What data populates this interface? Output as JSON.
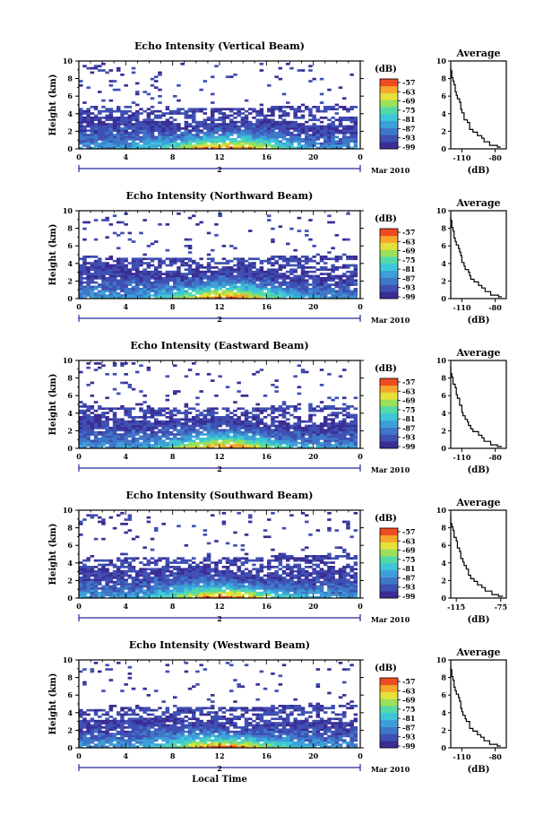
{
  "chart_data": [
    {
      "type": "heatmap",
      "title": "Echo Intensity (Vertical Beam)",
      "ylabel": "Height (km)",
      "xlim": [
        0,
        24
      ],
      "ylim": [
        0,
        10
      ],
      "x_ticks": [
        "0",
        "4",
        "8",
        "12",
        "16",
        "20",
        "0"
      ],
      "y_ticks": [
        "0",
        "2",
        "4",
        "6",
        "8",
        "10"
      ],
      "date_axis": {
        "marker": "2",
        "month_label": "Mar 2010"
      },
      "colorbar": {
        "unit": "(dB)",
        "levels": [
          "-57",
          "-63",
          "-69",
          "-75",
          "-81",
          "-87",
          "-93",
          "-99"
        ]
      },
      "average_profile": {
        "title": "Average",
        "xlabel": "(dB)",
        "x_ticks": [
          "-110",
          "-80"
        ],
        "xlim": [
          -120,
          -70
        ],
        "y_ticks": [
          "0",
          "2",
          "4",
          "6",
          "8",
          "10"
        ],
        "x": [
          -75,
          -78,
          -85,
          -90,
          -92,
          -96,
          -100,
          -103,
          -103,
          -105,
          -108,
          -108,
          -110,
          -111,
          -111,
          -112,
          -114,
          -115,
          -116,
          -116,
          -117,
          -118,
          -119,
          -119,
          -120
        ],
        "y": [
          0.2,
          0.4,
          0.8,
          1.2,
          1.5,
          1.9,
          2.2,
          2.6,
          3.0,
          3.3,
          3.7,
          4.1,
          4.5,
          4.9,
          5.3,
          5.7,
          6.1,
          6.5,
          6.9,
          7.3,
          7.7,
          8.1,
          8.5,
          8.9,
          9.3
        ]
      }
    },
    {
      "type": "heatmap",
      "title": "Echo Intensity (Northward Beam)",
      "ylabel": "Height (km)",
      "xlim": [
        0,
        24
      ],
      "ylim": [
        0,
        10
      ],
      "x_ticks": [
        "0",
        "4",
        "8",
        "12",
        "16",
        "20",
        "0"
      ],
      "y_ticks": [
        "0",
        "2",
        "4",
        "6",
        "8",
        "10"
      ],
      "date_axis": {
        "marker": "2",
        "month_label": "Mar 2010"
      },
      "colorbar": {
        "unit": "(dB)",
        "levels": [
          "-57",
          "-63",
          "-69",
          "-75",
          "-81",
          "-87",
          "-93",
          "-99"
        ]
      },
      "average_profile": {
        "title": "Average",
        "xlabel": "(dB)",
        "x_ticks": [
          "-110",
          "-80"
        ],
        "xlim": [
          -120,
          -70
        ],
        "y_ticks": [
          "0",
          "2",
          "4",
          "6",
          "8",
          "10"
        ],
        "x": [
          -74,
          -77,
          -84,
          -89,
          -92,
          -95,
          -99,
          -102,
          -103,
          -104,
          -107,
          -108,
          -110,
          -110,
          -111,
          -112,
          -113,
          -115,
          -116,
          -117,
          -117,
          -118,
          -119,
          -119,
          -120
        ],
        "y": [
          0.2,
          0.4,
          0.8,
          1.2,
          1.5,
          1.9,
          2.2,
          2.6,
          3.0,
          3.3,
          3.7,
          4.1,
          4.5,
          4.9,
          5.3,
          5.7,
          6.1,
          6.5,
          6.9,
          7.3,
          7.7,
          8.1,
          8.5,
          8.9,
          9.3
        ]
      }
    },
    {
      "type": "heatmap",
      "title": "Echo Intensity (Eastward Beam)",
      "ylabel": "Height (km)",
      "xlim": [
        0,
        24
      ],
      "ylim": [
        0,
        10
      ],
      "x_ticks": [
        "0",
        "4",
        "8",
        "12",
        "16",
        "20",
        "0"
      ],
      "y_ticks": [
        "0",
        "2",
        "4",
        "6",
        "8",
        "10"
      ],
      "date_axis": {
        "marker": "2",
        "month_label": "Mar 2010"
      },
      "colorbar": {
        "unit": "(dB)",
        "levels": [
          "-57",
          "-63",
          "-69",
          "-75",
          "-81",
          "-87",
          "-93",
          "-99"
        ]
      },
      "average_profile": {
        "title": "Average",
        "xlabel": "(dB)",
        "x_ticks": [
          "-110",
          "-80"
        ],
        "xlim": [
          -120,
          -70
        ],
        "y_ticks": [
          "0",
          "2",
          "4",
          "6",
          "8",
          "10"
        ],
        "x": [
          -74,
          -78,
          -84,
          -90,
          -92,
          -95,
          -100,
          -102,
          -104,
          -105,
          -107,
          -109,
          -110,
          -110,
          -112,
          -112,
          -114,
          -115,
          -115,
          -116,
          -118,
          -118,
          -119,
          -120,
          -120
        ],
        "y": [
          0.2,
          0.4,
          0.8,
          1.2,
          1.5,
          1.9,
          2.2,
          2.6,
          3.0,
          3.3,
          3.7,
          4.1,
          4.5,
          4.9,
          5.3,
          5.7,
          6.1,
          6.5,
          6.9,
          7.3,
          7.7,
          8.1,
          8.5,
          8.9,
          9.3
        ]
      }
    },
    {
      "type": "heatmap",
      "title": "Echo Intensity (Southward Beam)",
      "ylabel": "Height (km)",
      "xlim": [
        0,
        24
      ],
      "ylim": [
        0,
        10
      ],
      "x_ticks": [
        "0",
        "4",
        "8",
        "12",
        "16",
        "20",
        "0"
      ],
      "y_ticks": [
        "0",
        "2",
        "4",
        "6",
        "8",
        "10"
      ],
      "date_axis": {
        "marker": "2",
        "month_label": "Mar 2010"
      },
      "colorbar": {
        "unit": "(dB)",
        "levels": [
          "-57",
          "-63",
          "-69",
          "-75",
          "-81",
          "-87",
          "-93",
          "-99"
        ]
      },
      "average_profile": {
        "title": "Average",
        "xlabel": "(dB)",
        "x_ticks": [
          "-115",
          "-75"
        ],
        "xlim": [
          -120,
          -70
        ],
        "y_ticks": [
          "0",
          "2",
          "4",
          "6",
          "8",
          "10"
        ],
        "x": [
          -73,
          -77,
          -83,
          -89,
          -92,
          -96,
          -99,
          -102,
          -104,
          -104,
          -106,
          -108,
          -109,
          -111,
          -111,
          -112,
          -114,
          -114,
          -115,
          -117,
          -117,
          -118,
          -119,
          -120,
          -120
        ],
        "y": [
          0.2,
          0.4,
          0.8,
          1.2,
          1.5,
          1.9,
          2.2,
          2.6,
          3.0,
          3.3,
          3.7,
          4.1,
          4.5,
          4.9,
          5.3,
          5.7,
          6.1,
          6.5,
          6.9,
          7.3,
          7.7,
          8.1,
          8.5,
          8.9,
          9.3
        ]
      }
    },
    {
      "type": "heatmap",
      "title": "Echo Intensity (Westward Beam)",
      "ylabel": "Height (km)",
      "xlabel": "Local Time",
      "xlim": [
        0,
        24
      ],
      "ylim": [
        0,
        10
      ],
      "x_ticks": [
        "0",
        "4",
        "8",
        "12",
        "16",
        "20",
        "0"
      ],
      "y_ticks": [
        "0",
        "2",
        "4",
        "6",
        "8",
        "10"
      ],
      "date_axis": {
        "marker": "2",
        "month_label": "Mar 2010"
      },
      "colorbar": {
        "unit": "(dB)",
        "levels": [
          "-57",
          "-63",
          "-69",
          "-75",
          "-81",
          "-87",
          "-93",
          "-99"
        ]
      },
      "average_profile": {
        "title": "Average",
        "xlabel": "(dB)",
        "x_ticks": [
          "-110",
          "-80"
        ],
        "xlim": [
          -120,
          -70
        ],
        "y_ticks": [
          "0",
          "2",
          "4",
          "6",
          "8",
          "10"
        ],
        "x": [
          -75,
          -78,
          -85,
          -90,
          -93,
          -96,
          -100,
          -103,
          -103,
          -106,
          -107,
          -109,
          -110,
          -111,
          -111,
          -112,
          -113,
          -115,
          -116,
          -117,
          -117,
          -118,
          -119,
          -119,
          -120
        ],
        "y": [
          0.2,
          0.4,
          0.8,
          1.2,
          1.5,
          1.9,
          2.2,
          2.6,
          3.0,
          3.3,
          3.7,
          4.1,
          4.5,
          4.9,
          5.3,
          5.7,
          6.1,
          6.5,
          6.9,
          7.3,
          7.7,
          8.1,
          8.5,
          8.9,
          9.3
        ]
      }
    }
  ],
  "colors": {
    "colormap": [
      "#3a2d94",
      "#3f4fb3",
      "#3f77c8",
      "#3d9fd9",
      "#3dc6d8",
      "#54d9a9",
      "#9be05a",
      "#e4e23a",
      "#f7a52c",
      "#ee4b22"
    ],
    "axis": "#000000",
    "date_axis": "#26269c"
  }
}
